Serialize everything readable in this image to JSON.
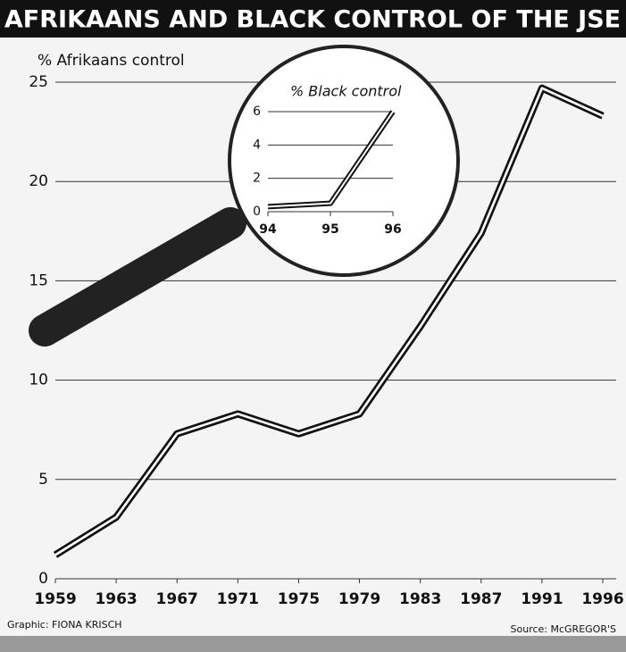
{
  "chart_data": [
    {
      "type": "line",
      "title": "AFRIKAANS AND BLACK CONTROL OF THE JSE",
      "y_label": "% Afrikaans control",
      "categories": [
        "1959",
        "1963",
        "1967",
        "1971",
        "1975",
        "1979",
        "1983",
        "1987",
        "1991",
        "1996"
      ],
      "values": [
        1.2,
        3.1,
        7.3,
        8.3,
        7.3,
        8.3,
        12.7,
        17.4,
        24.7,
        23.3
      ],
      "color": "#111111",
      "ylim": [
        0,
        25
      ],
      "yticks": [
        0,
        5,
        10,
        15,
        20,
        25
      ],
      "grid": true,
      "credit": "Graphic: FIONA KRISCH",
      "source": "Source: McGREGOR'S"
    },
    {
      "type": "line",
      "title": "% Black control",
      "categories": [
        "94",
        "95",
        "96"
      ],
      "values": [
        0.3,
        0.5,
        6
      ],
      "color": "#111111",
      "ylim": [
        0,
        6
      ],
      "yticks": [
        0,
        2,
        4,
        6
      ],
      "grid": true
    }
  ]
}
